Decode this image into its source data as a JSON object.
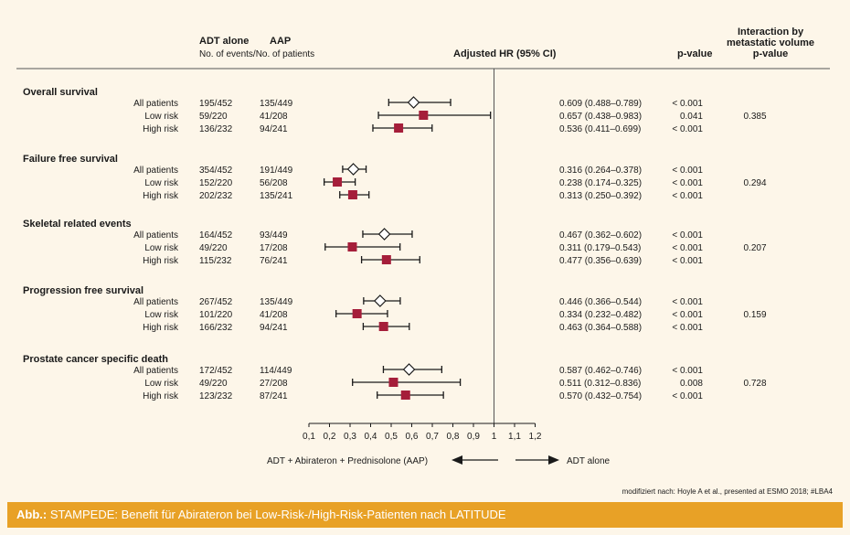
{
  "header": {
    "col_adt_title": "ADT alone",
    "col_aap_title": "AAP",
    "col_events_sub": "No. of events/No. of patients",
    "col_hr": "Adjusted HR (95% CI)",
    "col_pvalue": "p-value",
    "col_interaction_1": "Interaction by",
    "col_interaction_2": "metastatic volume",
    "col_interaction_3": "p-value"
  },
  "chart_data": {
    "type": "forest",
    "xlim": [
      0.05,
      1.25
    ],
    "reference_line": 1,
    "xticks": [
      {
        "value": 0.1,
        "label": "0,1"
      },
      {
        "value": 0.2,
        "label": "0,2"
      },
      {
        "value": 0.3,
        "label": "0,3"
      },
      {
        "value": 0.4,
        "label": "0,4"
      },
      {
        "value": 0.5,
        "label": "0,5"
      },
      {
        "value": 0.6,
        "label": "0,6"
      },
      {
        "value": 0.7,
        "label": "0,7"
      },
      {
        "value": 0.8,
        "label": "0,8"
      },
      {
        "value": 0.9,
        "label": "0,9"
      },
      {
        "value": 1.0,
        "label": "1"
      },
      {
        "value": 1.1,
        "label": "1,1"
      },
      {
        "value": 1.2,
        "label": "1,2"
      }
    ],
    "left_arrow_label": "ADT + Abirateron + Prednisolone (AAP)",
    "right_arrow_label": "ADT alone",
    "groups": [
      {
        "title": "Overall survival",
        "interaction_p": "0.385",
        "rows": [
          {
            "label": "All patients",
            "adt": "195/452",
            "aap": "135/449",
            "hr": 0.609,
            "lo": 0.488,
            "hi": 0.789,
            "ci_text": "0.609 (0.488–0.789)",
            "p": "< 0.001",
            "marker": "diamond"
          },
          {
            "label": "Low risk",
            "adt": "59/220",
            "aap": "41/208",
            "hr": 0.657,
            "lo": 0.438,
            "hi": 0.983,
            "ci_text": "0.657 (0.438–0.983)",
            "p": "0.041",
            "marker": "square"
          },
          {
            "label": "High risk",
            "adt": "136/232",
            "aap": "94/241",
            "hr": 0.536,
            "lo": 0.411,
            "hi": 0.699,
            "ci_text": "0.536 (0.411–0.699)",
            "p": "< 0.001",
            "marker": "square"
          }
        ]
      },
      {
        "title": "Failure free survival",
        "interaction_p": "0.294",
        "rows": [
          {
            "label": "All patients",
            "adt": "354/452",
            "aap": "191/449",
            "hr": 0.316,
            "lo": 0.264,
            "hi": 0.378,
            "ci_text": "0.316 (0.264–0.378)",
            "p": "< 0.001",
            "marker": "diamond"
          },
          {
            "label": "Low risk",
            "adt": "152/220",
            "aap": "56/208",
            "hr": 0.238,
            "lo": 0.174,
            "hi": 0.325,
            "ci_text": "0.238 (0.174–0.325)",
            "p": "< 0.001",
            "marker": "square"
          },
          {
            "label": "High risk",
            "adt": "202/232",
            "aap": "135/241",
            "hr": 0.313,
            "lo": 0.25,
            "hi": 0.392,
            "ci_text": "0.313 (0.250–0.392)",
            "p": "< 0.001",
            "marker": "square"
          }
        ]
      },
      {
        "title": "Skeletal related events",
        "interaction_p": "0.207",
        "rows": [
          {
            "label": "All patients",
            "adt": "164/452",
            "aap": "93/449",
            "hr": 0.467,
            "lo": 0.362,
            "hi": 0.602,
            "ci_text": "0.467 (0.362–0.602)",
            "p": "< 0.001",
            "marker": "diamond"
          },
          {
            "label": "Low risk",
            "adt": "49/220",
            "aap": "17/208",
            "hr": 0.311,
            "lo": 0.179,
            "hi": 0.543,
            "ci_text": "0.311 (0.179–0.543)",
            "p": "< 0.001",
            "marker": "square"
          },
          {
            "label": "High risk",
            "adt": "115/232",
            "aap": "76/241",
            "hr": 0.477,
            "lo": 0.356,
            "hi": 0.639,
            "ci_text": "0.477 (0.356–0.639)",
            "p": "< 0.001",
            "marker": "square"
          }
        ]
      },
      {
        "title": "Progression free survival",
        "interaction_p": "0.159",
        "rows": [
          {
            "label": "All patients",
            "adt": "267/452",
            "aap": "135/449",
            "hr": 0.446,
            "lo": 0.366,
            "hi": 0.544,
            "ci_text": "0.446 (0.366–0.544)",
            "p": "< 0.001",
            "marker": "diamond"
          },
          {
            "label": "Low risk",
            "adt": "101/220",
            "aap": "41/208",
            "hr": 0.334,
            "lo": 0.232,
            "hi": 0.482,
            "ci_text": "0.334 (0.232–0.482)",
            "p": "< 0.001",
            "marker": "square"
          },
          {
            "label": "High risk",
            "adt": "166/232",
            "aap": "94/241",
            "hr": 0.463,
            "lo": 0.364,
            "hi": 0.588,
            "ci_text": "0.463 (0.364–0.588)",
            "p": "< 0.001",
            "marker": "square"
          }
        ]
      },
      {
        "title": "Prostate cancer specific death",
        "interaction_p": "0.728",
        "rows": [
          {
            "label": "All patients",
            "adt": "172/452",
            "aap": "114/449",
            "hr": 0.587,
            "lo": 0.462,
            "hi": 0.746,
            "ci_text": "0.587 (0.462–0.746)",
            "p": "< 0.001",
            "marker": "diamond"
          },
          {
            "label": "Low risk",
            "adt": "49/220",
            "aap": "27/208",
            "hr": 0.511,
            "lo": 0.312,
            "hi": 0.836,
            "ci_text": "0.511 (0.312–0.836)",
            "p": "0.008",
            "marker": "square"
          },
          {
            "label": "High risk",
            "adt": "123/232",
            "aap": "87/241",
            "hr": 0.57,
            "lo": 0.432,
            "hi": 0.754,
            "ci_text": "0.570 (0.432–0.754)",
            "p": "< 0.001",
            "marker": "square"
          }
        ]
      }
    ],
    "colors": {
      "square": "#a51e3a",
      "diamond_fill": "#ffffff",
      "line": "#1a1a1a"
    }
  },
  "source_note": "modifiziert nach: Hoyle A et al., presented at ESMO 2018; #LBA4",
  "caption": {
    "prefix": "Abb.:",
    "text": " STAMPEDE: Benefit für Abirateron bei Low-Risk-/High-Risk-Patienten nach LATITUDE"
  }
}
